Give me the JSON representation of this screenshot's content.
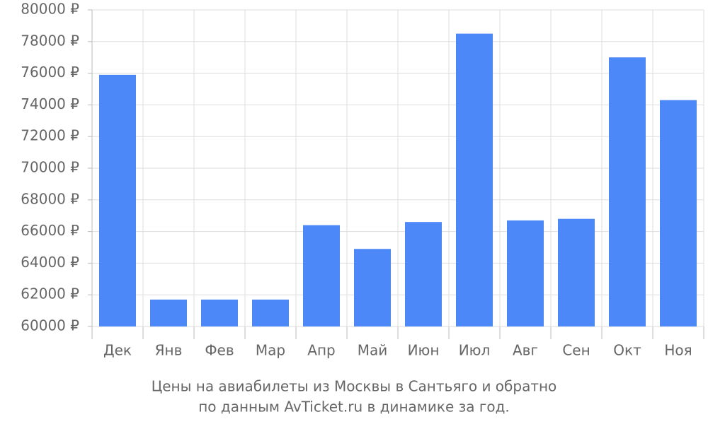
{
  "chart_data": {
    "type": "bar",
    "caption": [
      "Цены на авиабилеты из Москвы в Сантьяго и обратно",
      "по данным AvTicket.ru в динамике за год."
    ],
    "categories": [
      "Дек",
      "Янв",
      "Фев",
      "Мар",
      "Апр",
      "Май",
      "Июн",
      "Июл",
      "Авг",
      "Сен",
      "Окт",
      "Ноя"
    ],
    "values": [
      75900,
      61700,
      61700,
      61700,
      66400,
      64900,
      66600,
      78500,
      66700,
      66800,
      77000,
      74300
    ],
    "color": "#4d88f8",
    "ylim": [
      60000,
      80000
    ],
    "yticks": [
      {
        "value": 60000,
        "label": "60000 ₽"
      },
      {
        "value": 62000,
        "label": "62000 ₽"
      },
      {
        "value": 64000,
        "label": "64000 ₽"
      },
      {
        "value": 66000,
        "label": "66000 ₽"
      },
      {
        "value": 68000,
        "label": "68000 ₽"
      },
      {
        "value": 70000,
        "label": "70000 ₽"
      },
      {
        "value": 72000,
        "label": "72000 ₽"
      },
      {
        "value": 74000,
        "label": "74000 ₽"
      },
      {
        "value": 76000,
        "label": "76000 ₽"
      },
      {
        "value": 78000,
        "label": "78000 ₽"
      },
      {
        "value": 80000,
        "label": "80000 ₽"
      }
    ],
    "grid": true
  }
}
